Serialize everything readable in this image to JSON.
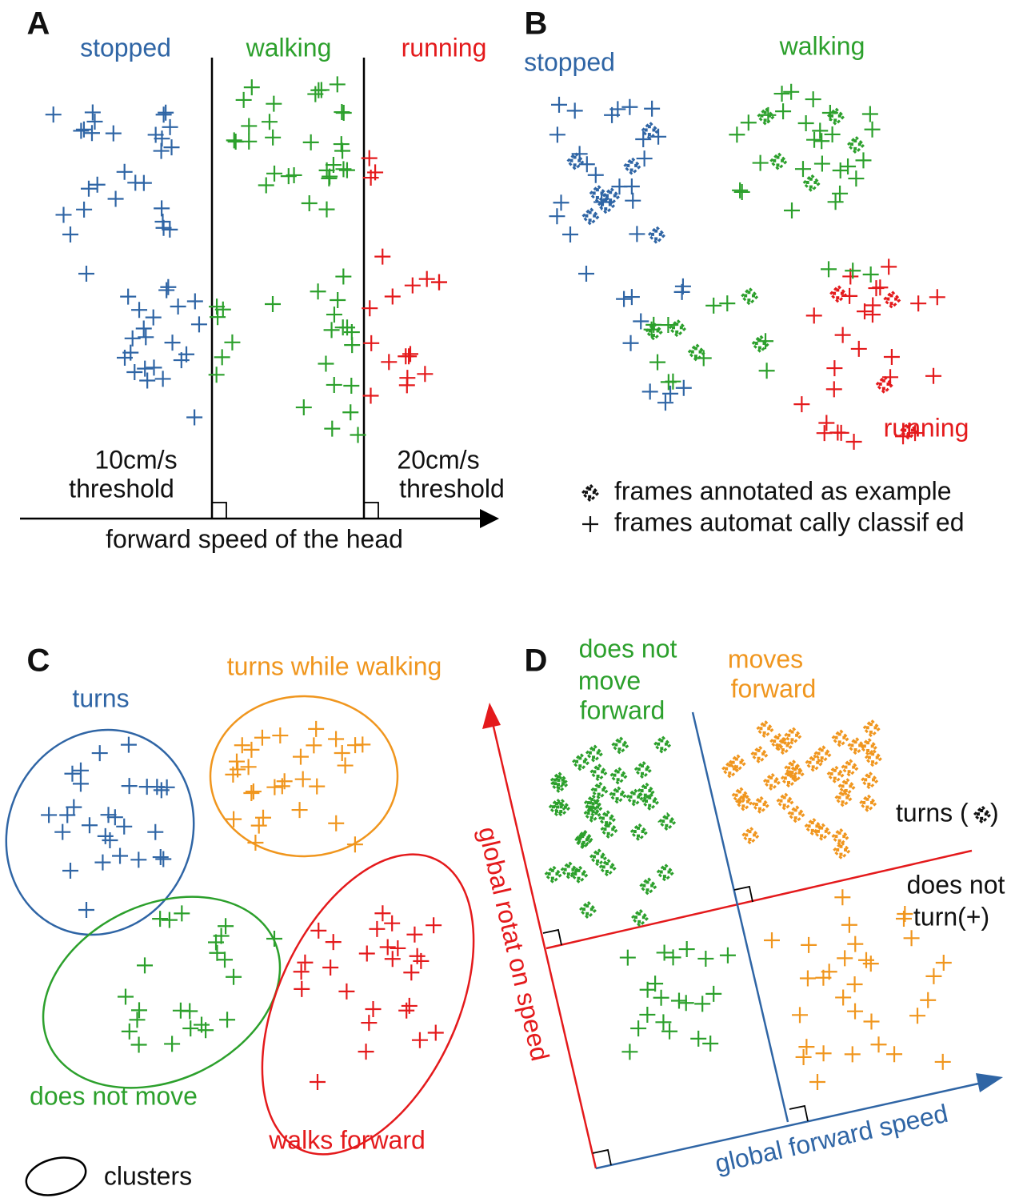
{
  "panel_a": {
    "label": "A",
    "classes": [
      "stopped",
      "walking",
      "running"
    ],
    "thresholds": [
      [
        "10cm/s",
        "threshold"
      ],
      [
        "20cm/s",
        "threshold"
      ]
    ],
    "axis_label": "forward speed of the head"
  },
  "panel_b": {
    "label": "B",
    "classes": [
      "stopped",
      "walking",
      "running"
    ],
    "legend": [
      "frames annotated as example",
      "frames  automat cally classif ed"
    ]
  },
  "panel_c": {
    "label": "C",
    "clusters": [
      "turns",
      "turns while walking",
      "does not move",
      "walks forward"
    ],
    "legend": "clusters"
  },
  "panel_d": {
    "label": "D",
    "quadrants": [
      [
        "does not",
        "move",
        "forward"
      ],
      [
        "moves",
        "forward"
      ]
    ],
    "turns": [
      "turns (",
      ")"
    ],
    "not_turn": [
      "does not",
      "turn(+)"
    ],
    "y_axis": "global rotat on speed",
    "x_axis": "global forward speed"
  }
}
